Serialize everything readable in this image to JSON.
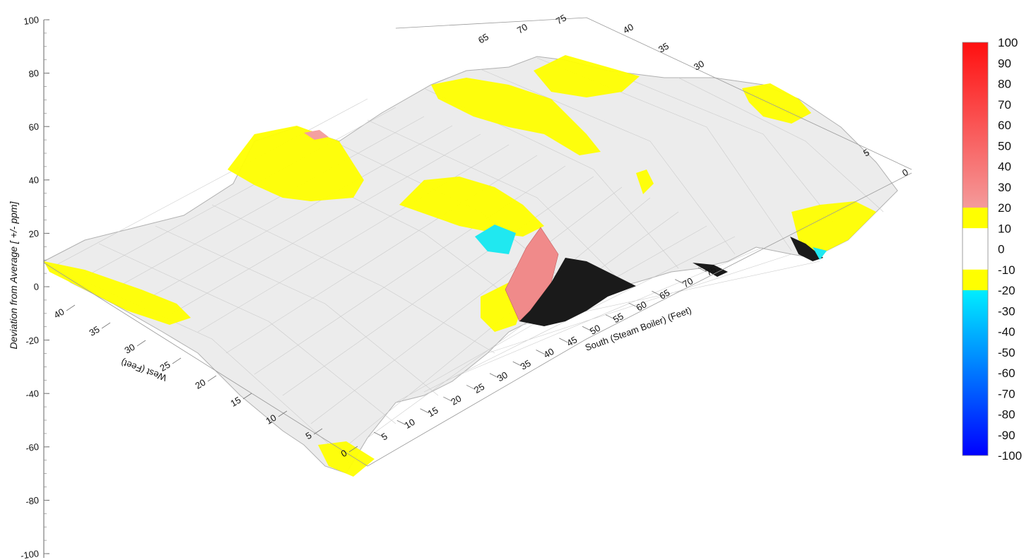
{
  "chart_data": {
    "type": "surface3d",
    "z_axis": {
      "label": "Deviation from Average [ +/- ppm]",
      "range": [
        -100,
        100
      ],
      "ticks": [
        "100",
        "80",
        "60",
        "40",
        "20",
        "0",
        "-20",
        "-40",
        "-60",
        "-80",
        "-100"
      ]
    },
    "south_axis": {
      "label": "South (Steam Boiler) (Feet)",
      "ticks": [
        "5",
        "10",
        "15",
        "20",
        "25",
        "30",
        "35",
        "40",
        "45",
        "50",
        "55",
        "60",
        "65",
        "70",
        "75"
      ]
    },
    "west_axis": {
      "label": "West (Feet)",
      "ticks": [
        "0",
        "5",
        "10",
        "15",
        "20",
        "25",
        "30",
        "35",
        "40"
      ]
    },
    "far_south_ticks": [
      "65",
      "70",
      "75"
    ],
    "far_west_ticks": [
      "40",
      "35",
      "30"
    ],
    "right_west_ticks": [
      "0",
      "5"
    ],
    "colorbar": {
      "ticks": [
        "100",
        "90",
        "80",
        "70",
        "60",
        "50",
        "40",
        "30",
        "20",
        "10",
        "0",
        "-10",
        "-20",
        "-30",
        "-40",
        "-50",
        "-60",
        "-70",
        "-80",
        "-90",
        "-100"
      ],
      "bands": [
        {
          "from": 20,
          "to": 100,
          "color_from": "#f49a9a",
          "color_to": "#ff1010"
        },
        {
          "from": 10,
          "to": 20,
          "color": "#ffff00"
        },
        {
          "from": -10,
          "to": 10,
          "color": "#ffffff"
        },
        {
          "from": -20,
          "to": -10,
          "color": "#ffff00"
        },
        {
          "from": -100,
          "to": -20,
          "color_from": "#00eeff",
          "color_to": "#0000ff"
        }
      ]
    },
    "surface_features": [
      {
        "kind": "peak",
        "value": 50,
        "color": "#f08a8a",
        "location": "south 25-30, west 25"
      },
      {
        "kind": "trough",
        "value": -100,
        "color": "#1a1a1a",
        "location": "south 30-45, west 20"
      },
      {
        "kind": "trough",
        "value": -40,
        "color": "#20e8f0",
        "location": "south 25, west 20"
      },
      {
        "kind": "plateau",
        "value": 20,
        "color": "#ffff00",
        "location": "south 15, west 25"
      }
    ]
  }
}
